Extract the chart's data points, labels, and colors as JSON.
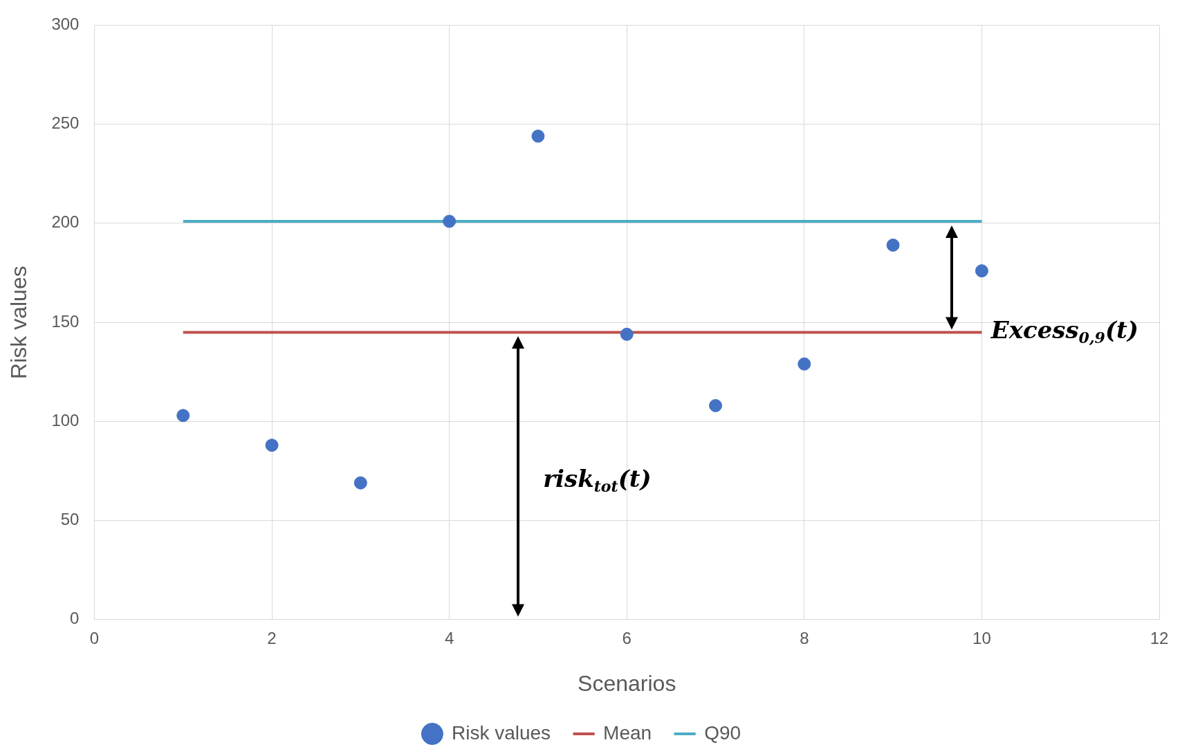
{
  "chart_data": {
    "type": "scatter",
    "xlabel": "Scenarios",
    "ylabel": "Risk values",
    "xlim": [
      0,
      12
    ],
    "xticks": [
      0,
      2,
      4,
      6,
      8,
      10,
      12
    ],
    "ylim": [
      0,
      300
    ],
    "yticks": [
      0,
      50,
      100,
      150,
      200,
      250,
      300
    ],
    "grid": true,
    "legend": "bottom",
    "series": [
      {
        "name": "Risk values",
        "marker": "circle",
        "color": "#4472c4",
        "x": [
          1,
          2,
          3,
          4,
          5,
          6,
          7,
          8,
          9,
          10
        ],
        "values": [
          103,
          88,
          69,
          201,
          244,
          144,
          108,
          129,
          189,
          176
        ]
      },
      {
        "name": "Mean",
        "type": "line",
        "marker": "none",
        "color": "#c0504d",
        "x": [
          1,
          10
        ],
        "values": [
          145,
          145
        ]
      },
      {
        "name": "Q90",
        "type": "line",
        "marker": "none",
        "color": "#4bacc6",
        "x": [
          1,
          10
        ],
        "values": [
          201,
          201
        ]
      }
    ],
    "annotations": [
      "risk$_{tot}$(t)",
      "Excess$_{0,9}$(t)"
    ]
  }
}
